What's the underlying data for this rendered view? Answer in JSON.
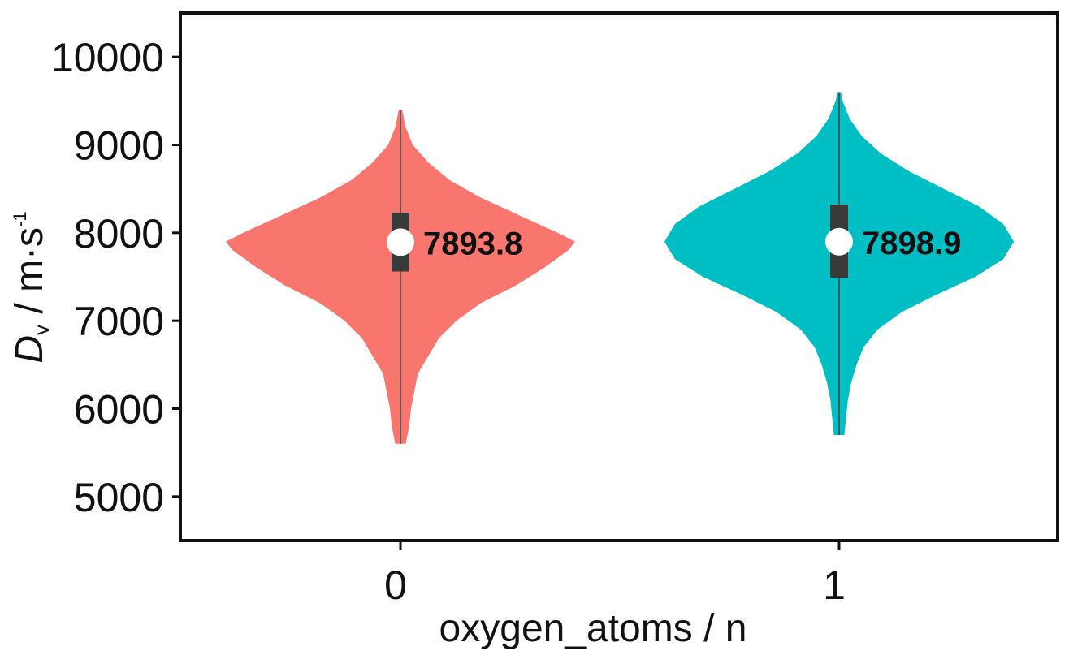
{
  "chart_data": {
    "type": "violin",
    "title": "",
    "xlabel": "oxygen_atoms / n",
    "ylabel": {
      "symbol": "D",
      "subscript": "v",
      "unit": " / m·s",
      "superscript": "-1"
    },
    "ylim": [
      4500,
      10500
    ],
    "yticks": [
      5000,
      6000,
      7000,
      8000,
      9000,
      10000
    ],
    "grid": false,
    "legend": "none",
    "series": [
      {
        "category": "0",
        "color": "#f8766d",
        "median": 7893.8,
        "median_label": "7893.8",
        "q1": 7560,
        "q3": 8230,
        "min": 5600,
        "max": 9400,
        "density": [
          [
            5600,
            0.03
          ],
          [
            5800,
            0.05
          ],
          [
            6000,
            0.06
          ],
          [
            6200,
            0.08
          ],
          [
            6400,
            0.1
          ],
          [
            6600,
            0.16
          ],
          [
            6800,
            0.22
          ],
          [
            7000,
            0.32
          ],
          [
            7200,
            0.46
          ],
          [
            7400,
            0.66
          ],
          [
            7600,
            0.82
          ],
          [
            7800,
            0.96
          ],
          [
            7900,
            1.0
          ],
          [
            8000,
            0.9
          ],
          [
            8200,
            0.68
          ],
          [
            8400,
            0.46
          ],
          [
            8600,
            0.28
          ],
          [
            8800,
            0.16
          ],
          [
            9000,
            0.07
          ],
          [
            9200,
            0.03
          ],
          [
            9400,
            0.01
          ]
        ]
      },
      {
        "category": "1",
        "color": "#00bfc4",
        "median": 7898.9,
        "median_label": "7898.9",
        "q1": 7490,
        "q3": 8320,
        "min": 5700,
        "max": 9600,
        "density": [
          [
            5700,
            0.03
          ],
          [
            5900,
            0.04
          ],
          [
            6100,
            0.05
          ],
          [
            6300,
            0.07
          ],
          [
            6500,
            0.1
          ],
          [
            6700,
            0.14
          ],
          [
            6900,
            0.22
          ],
          [
            7100,
            0.36
          ],
          [
            7300,
            0.56
          ],
          [
            7500,
            0.78
          ],
          [
            7700,
            0.94
          ],
          [
            7900,
            1.0
          ],
          [
            8100,
            0.94
          ],
          [
            8300,
            0.8
          ],
          [
            8500,
            0.6
          ],
          [
            8700,
            0.4
          ],
          [
            8900,
            0.24
          ],
          [
            9100,
            0.13
          ],
          [
            9300,
            0.06
          ],
          [
            9500,
            0.02
          ],
          [
            9600,
            0.01
          ]
        ]
      }
    ]
  }
}
